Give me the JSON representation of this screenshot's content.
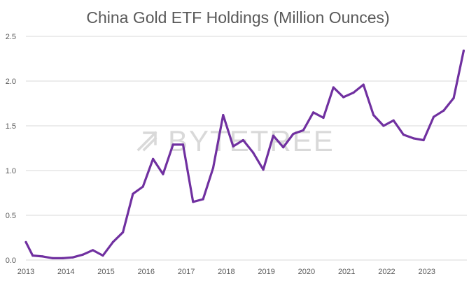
{
  "chart_data": {
    "type": "line",
    "title": "China Gold ETF Holdings (Million Ounces)",
    "xlabel": "",
    "ylabel": "",
    "xlim": [
      2013,
      2024.0
    ],
    "ylim": [
      0,
      2.5
    ],
    "y_ticks": [
      "0.0",
      "0.5",
      "1.0",
      "1.5",
      "2.0",
      "2.5"
    ],
    "x_ticks": [
      "2013",
      "2014",
      "2015",
      "2016",
      "2017",
      "2018",
      "2019",
      "2020",
      "2021",
      "2022",
      "2023"
    ],
    "grid": true,
    "legend": "none",
    "line_color": "#7030a0",
    "grid_color": "#d9d9d9",
    "series": [
      {
        "x": [
          2013.0,
          2013.17,
          2013.42,
          2013.67,
          2013.92,
          2014.17,
          2014.42,
          2014.67,
          2014.92,
          2015.17,
          2015.42,
          2015.67,
          2015.92,
          2016.17,
          2016.42,
          2016.67,
          2016.92,
          2017.17,
          2017.42,
          2017.67,
          2017.92,
          2018.17,
          2018.42,
          2018.67,
          2018.92,
          2019.17,
          2019.42,
          2019.67,
          2019.92,
          2020.17,
          2020.42,
          2020.67,
          2020.92,
          2021.17,
          2021.42,
          2021.67,
          2021.92,
          2022.17,
          2022.42,
          2022.67,
          2022.92,
          2023.17,
          2023.42,
          2023.67,
          2023.92
        ],
        "values": [
          0.2,
          0.05,
          0.04,
          0.02,
          0.02,
          0.03,
          0.06,
          0.11,
          0.05,
          0.2,
          0.31,
          0.74,
          0.82,
          1.13,
          0.96,
          1.29,
          1.29,
          0.65,
          0.68,
          1.03,
          1.62,
          1.27,
          1.34,
          1.2,
          1.01,
          1.39,
          1.26,
          1.41,
          1.45,
          1.65,
          1.59,
          1.93,
          1.82,
          1.87,
          1.96,
          1.62,
          1.5,
          1.56,
          1.4,
          1.36,
          1.34,
          1.6,
          1.67,
          1.81,
          2.34
        ]
      }
    ]
  },
  "watermark": {
    "text": "BYTETREE",
    "icon": "bytetree-arrow-logo-icon",
    "color": "#d9d9d9"
  }
}
